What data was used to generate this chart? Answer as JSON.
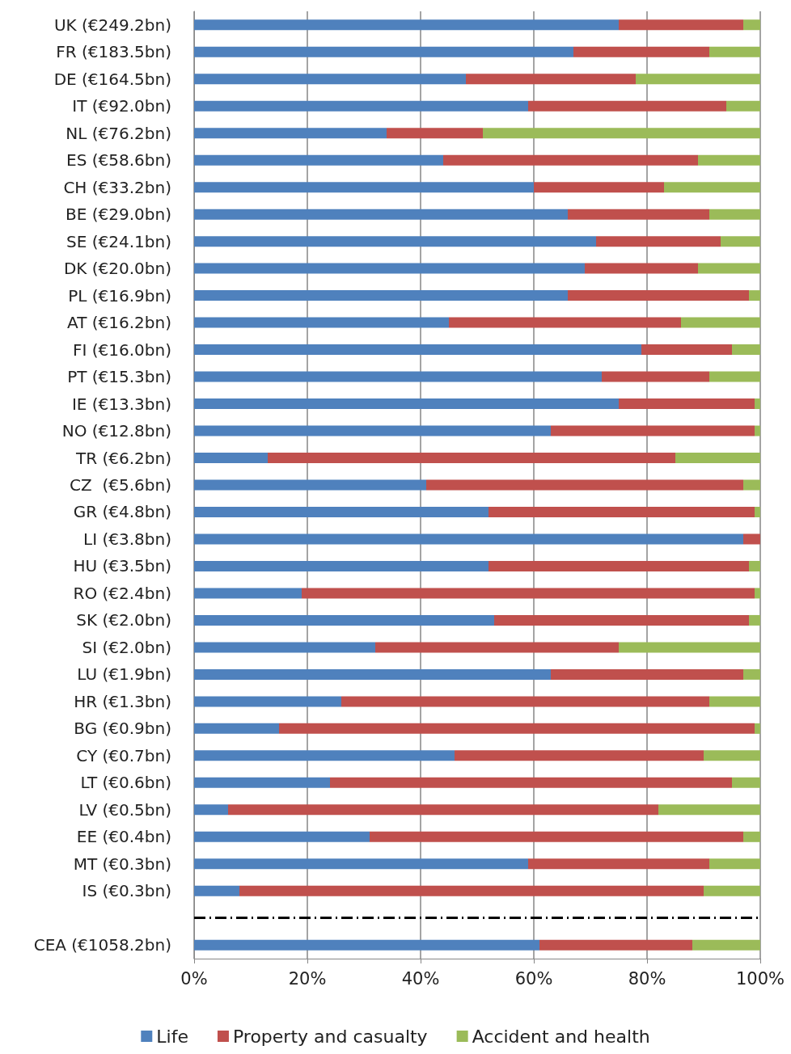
{
  "chart_data": {
    "type": "bar",
    "orientation": "horizontal",
    "stacked": true,
    "categories": [
      "UK (€249.2bn)",
      "FR (€183.5bn)",
      "DE (€164.5bn)",
      "IT (€92.0bn)",
      "NL (€76.2bn)",
      "ES (€58.6bn)",
      "CH (€33.2bn)",
      "BE (€29.0bn)",
      "SE (€24.1bn)",
      "DK (€20.0bn)",
      "PL (€16.9bn)",
      "AT (€16.2bn)",
      "FI (€16.0bn)",
      "PT (€15.3bn)",
      "IE (€13.3bn)",
      "NO (€12.8bn)",
      "TR (€6.2bn)",
      "CZ  (€5.6bn)",
      "GR (€4.8bn)",
      "LI (€3.8bn)",
      "HU (€3.5bn)",
      "RO (€2.4bn)",
      "SK (€2.0bn)",
      "SI (€2.0bn)",
      "LU (€1.9bn)",
      "HR (€1.3bn)",
      "BG (€0.9bn)",
      "CY (€0.7bn)",
      "LT (€0.6bn)",
      "LV (€0.5bn)",
      "EE (€0.4bn)",
      "MT (€0.3bn)",
      "IS (€0.3bn)",
      null,
      "CEA (€1058.2bn)"
    ],
    "series": [
      {
        "name": "Life",
        "color": "#4f81bd",
        "values": [
          75,
          67,
          48,
          59,
          34,
          44,
          60,
          66,
          71,
          69,
          66,
          45,
          79,
          72,
          75,
          63,
          13,
          41,
          52,
          97,
          52,
          19,
          53,
          32,
          63,
          26,
          15,
          46,
          24,
          6,
          31,
          59,
          8,
          null,
          61
        ]
      },
      {
        "name": "Property and casualty",
        "color": "#c0504d",
        "values": [
          22,
          24,
          30,
          35,
          17,
          45,
          23,
          25,
          22,
          20,
          32,
          41,
          16,
          19,
          24,
          36,
          72,
          56,
          47,
          3,
          46,
          80,
          45,
          43,
          34,
          65,
          84,
          44,
          71,
          76,
          66,
          32,
          82,
          null,
          27
        ]
      },
      {
        "name": "Accident and health",
        "color": "#9bbb59",
        "values": [
          3,
          9,
          22,
          6,
          49,
          11,
          17,
          9,
          7,
          11,
          2,
          14,
          5,
          9,
          1,
          1,
          15,
          3,
          1,
          0,
          2,
          1,
          2,
          25,
          3,
          9,
          1,
          10,
          5,
          18,
          3,
          9,
          10,
          null,
          12
        ]
      }
    ],
    "xlim": [
      0,
      100
    ],
    "xticks": [
      {
        "value": 0,
        "label": "0%"
      },
      {
        "value": 20,
        "label": "20%"
      },
      {
        "value": 40,
        "label": "40%"
      },
      {
        "value": 60,
        "label": "60%"
      },
      {
        "value": 80,
        "label": "80%"
      },
      {
        "value": 100,
        "label": "100%"
      }
    ],
    "grid": "x",
    "legend": "bottom"
  }
}
